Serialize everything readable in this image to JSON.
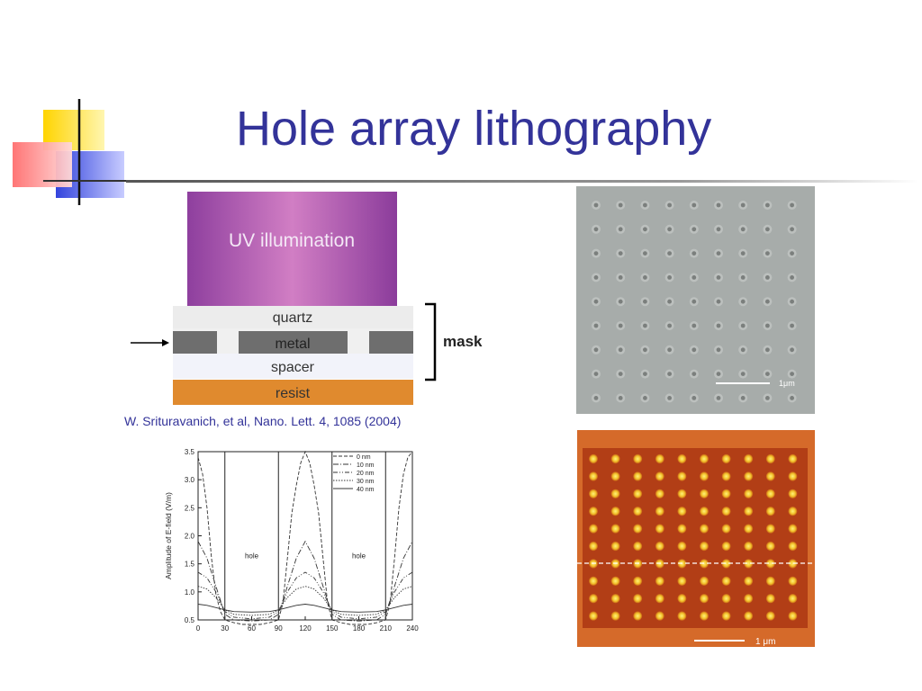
{
  "slide": {
    "title": "Hole array lithography",
    "citation": "W. Srituravanich, et al, Nano. Lett. 4, 1085 (2004)"
  },
  "schematic": {
    "uv_label": "UV illumination",
    "layers": [
      "quartz",
      "metal",
      "spacer",
      "resist"
    ],
    "mask_label": "mask",
    "colors": {
      "uv": "#b067b8",
      "quartz": "#ececec",
      "metal": "#6e6e6e",
      "spacer": "#f2f3fa",
      "resist": "#e08a2e"
    }
  },
  "sem_image": {
    "scale_label": "1μm"
  },
  "afm_image": {
    "scale_label": "1 μm"
  },
  "chart_data": {
    "type": "line",
    "ylabel": "Amplitude of E-field  (V/m)",
    "xlabel": "",
    "xlim": [
      0,
      240
    ],
    "ylim": [
      0.5,
      3.5
    ],
    "x_ticks": [
      "0",
      "30",
      "60",
      "90",
      "120",
      "150",
      "180",
      "210",
      "240"
    ],
    "y_ticks": [
      "0.5",
      "1.0",
      "1.5",
      "2.0",
      "2.5",
      "3.0",
      "3.5"
    ],
    "annotations": [
      "hole",
      "hole"
    ],
    "legend": [
      "0 nm",
      "10 nm",
      "20 nm",
      "30 nm",
      "40 nm"
    ],
    "legend_position": "top-right",
    "series": [
      {
        "name": "0 nm",
        "x": [
          0,
          5,
          10,
          15,
          20,
          25,
          30,
          40,
          50,
          60,
          70,
          80,
          90,
          95,
          100,
          105,
          110,
          115,
          120,
          125,
          130,
          135,
          140,
          145,
          150,
          160,
          170,
          180,
          190,
          200,
          210,
          215,
          220,
          225,
          230,
          235,
          240
        ],
        "y": [
          3.4,
          3.1,
          2.5,
          1.6,
          0.95,
          0.65,
          0.5,
          0.45,
          0.42,
          0.42,
          0.42,
          0.45,
          0.5,
          0.8,
          1.6,
          2.4,
          2.9,
          3.3,
          3.5,
          3.3,
          2.9,
          2.4,
          1.6,
          0.8,
          0.5,
          0.45,
          0.42,
          0.42,
          0.42,
          0.45,
          0.5,
          0.8,
          1.6,
          2.5,
          3.1,
          3.4,
          3.5
        ]
      },
      {
        "name": "10 nm",
        "x": [
          0,
          10,
          20,
          30,
          40,
          60,
          80,
          90,
          100,
          110,
          120,
          130,
          140,
          150,
          160,
          180,
          200,
          210,
          220,
          230,
          240
        ],
        "y": [
          1.9,
          1.6,
          1.1,
          0.6,
          0.5,
          0.48,
          0.5,
          0.6,
          1.1,
          1.6,
          1.9,
          1.6,
          1.1,
          0.6,
          0.5,
          0.48,
          0.5,
          0.6,
          1.1,
          1.6,
          1.9
        ]
      },
      {
        "name": "20 nm",
        "x": [
          0,
          10,
          20,
          30,
          40,
          60,
          80,
          90,
          100,
          110,
          120,
          130,
          140,
          150,
          160,
          180,
          200,
          210,
          220,
          230,
          240
        ],
        "y": [
          1.35,
          1.25,
          1.0,
          0.65,
          0.55,
          0.52,
          0.55,
          0.65,
          1.0,
          1.25,
          1.35,
          1.25,
          1.0,
          0.65,
          0.55,
          0.52,
          0.55,
          0.65,
          1.0,
          1.25,
          1.35
        ]
      },
      {
        "name": "30 nm",
        "x": [
          0,
          10,
          20,
          30,
          40,
          60,
          80,
          90,
          100,
          110,
          120,
          130,
          140,
          150,
          160,
          180,
          200,
          210,
          220,
          230,
          240
        ],
        "y": [
          1.1,
          1.05,
          0.9,
          0.68,
          0.6,
          0.58,
          0.6,
          0.68,
          0.9,
          1.05,
          1.1,
          1.05,
          0.9,
          0.68,
          0.6,
          0.58,
          0.6,
          0.68,
          0.9,
          1.05,
          1.1
        ]
      },
      {
        "name": "40 nm",
        "x": [
          0,
          10,
          20,
          30,
          40,
          60,
          80,
          90,
          100,
          110,
          120,
          130,
          140,
          150,
          160,
          180,
          200,
          210,
          220,
          230,
          240
        ],
        "y": [
          0.78,
          0.76,
          0.72,
          0.68,
          0.65,
          0.64,
          0.65,
          0.68,
          0.72,
          0.76,
          0.78,
          0.76,
          0.72,
          0.68,
          0.65,
          0.64,
          0.65,
          0.68,
          0.72,
          0.76,
          0.78
        ]
      }
    ]
  }
}
